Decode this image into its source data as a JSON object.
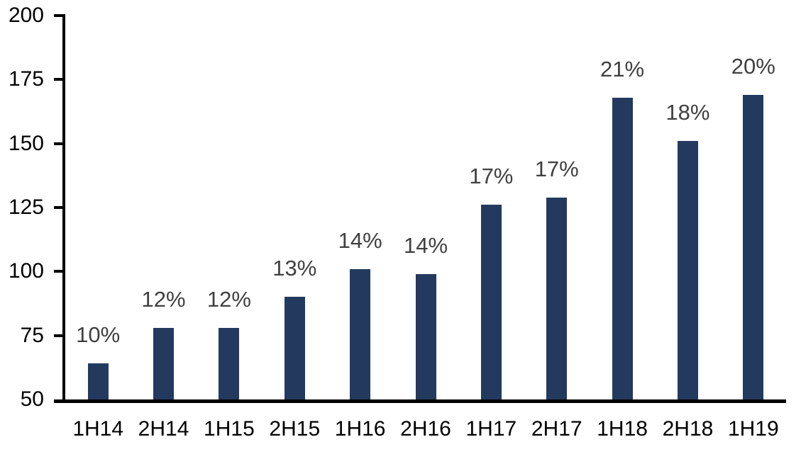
{
  "chart_data": {
    "type": "bar",
    "categories": [
      "1H14",
      "2H14",
      "1H15",
      "2H15",
      "1H16",
      "2H16",
      "1H17",
      "2H17",
      "1H18",
      "2H18",
      "1H19"
    ],
    "values": [
      64,
      78,
      78,
      90,
      101,
      99,
      126,
      129,
      168,
      151,
      169
    ],
    "bar_labels": [
      "10%",
      "12%",
      "12%",
      "13%",
      "14%",
      "14%",
      "17%",
      "17%",
      "21%",
      "18%",
      "20%"
    ],
    "title": "",
    "xlabel": "",
    "ylabel": "",
    "ylim": [
      50,
      200
    ],
    "yticks": [
      50,
      75,
      100,
      125,
      150,
      175,
      200
    ],
    "grid": false,
    "legend": false,
    "colors": {
      "bar": "#233A5E",
      "value_label": "#404040",
      "axis_text": "#000000",
      "axis_line": "#000000",
      "background": "#ffffff"
    }
  }
}
